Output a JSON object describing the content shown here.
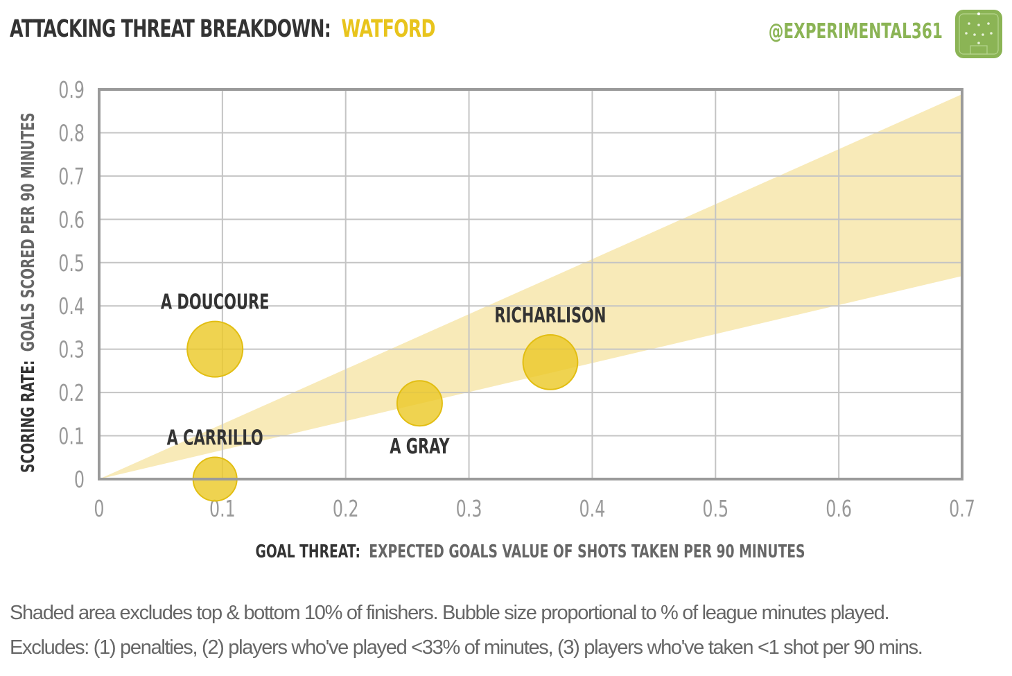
{
  "header": {
    "title_prefix": "ATTACKING THREAT BREAKDOWN:",
    "title_team": "WATFORD",
    "handle": "@EXPERIMENTAL361",
    "logo_icon": "pitch-icon"
  },
  "colors": {
    "title": "#333333",
    "team": "#e8c41c",
    "handle": "#8bb455",
    "bubble_fill": "#ecc92a",
    "bubble_stroke": "#e2be12",
    "band": "#f8eab8",
    "grid": "#c4c4c4",
    "frame": "#9a9a9a",
    "tick": "#999999"
  },
  "chart_data": {
    "type": "scatter",
    "title": "ATTACKING THREAT BREAKDOWN: WATFORD",
    "xlabel_bold": "GOAL THREAT:",
    "xlabel_rest": "EXPECTED GOALS VALUE OF SHOTS TAKEN PER 90 MINUTES",
    "ylabel_bold": "SCORING RATE:",
    "ylabel_rest": "GOALS SCORED PER 90 MINUTES",
    "xlim": [
      0,
      0.7
    ],
    "ylim": [
      0,
      0.9
    ],
    "x_ticks": [
      "0",
      "0.1",
      "0.2",
      "0.3",
      "0.4",
      "0.5",
      "0.6",
      "0.7"
    ],
    "y_ticks": [
      "0",
      "0.1",
      "0.2",
      "0.3",
      "0.4",
      "0.5",
      "0.6",
      "0.7",
      "0.8",
      "0.9"
    ],
    "grid": true,
    "shaded_band": {
      "upper_slope": 1.27,
      "lower_slope": 0.67
    },
    "points": [
      {
        "label": "A DOUCOURE",
        "x": 0.094,
        "y": 0.3,
        "size": 1.0,
        "label_pos": "above"
      },
      {
        "label": "A CARRILLO",
        "x": 0.094,
        "y": 0.0,
        "size": 0.62,
        "label_pos": "above"
      },
      {
        "label": "A GRAY",
        "x": 0.26,
        "y": 0.175,
        "size": 0.66,
        "label_pos": "below"
      },
      {
        "label": "RICHARLISON",
        "x": 0.366,
        "y": 0.27,
        "size": 0.97,
        "label_pos": "above"
      }
    ]
  },
  "footer": {
    "line1": "Shaded area excludes top & bottom 10% of finishers. Bubble size proportional to % of league minutes played.",
    "line2": "Excludes: (1) penalties, (2) players who've played <33% of minutes, (3) players who've taken <1 shot per 90 mins."
  }
}
